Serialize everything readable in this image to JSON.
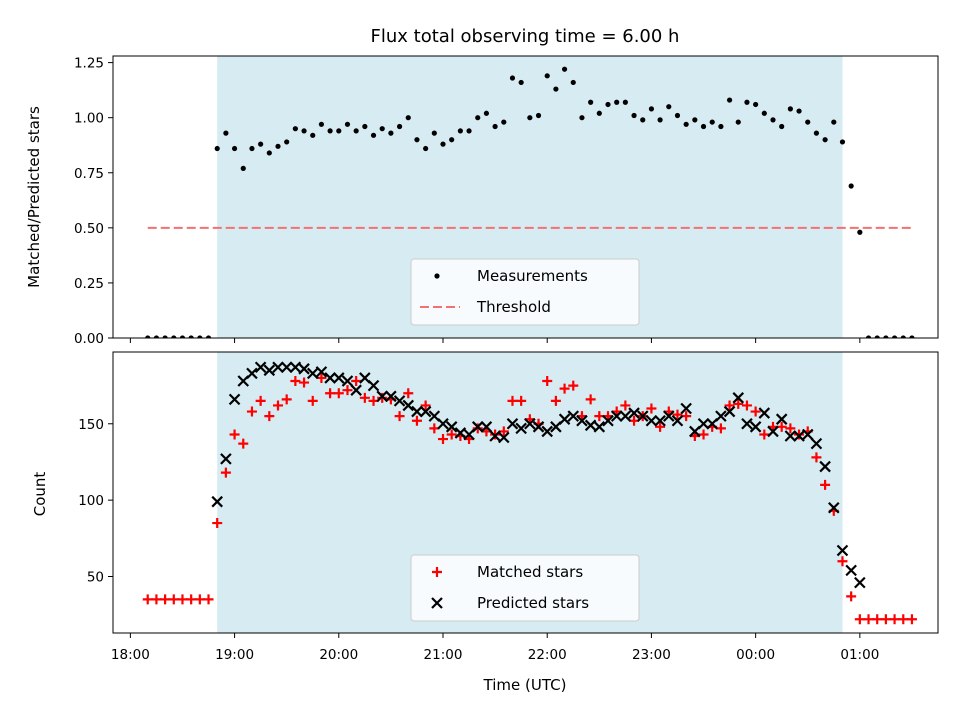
{
  "title": "Flux total observing time = 6.00 h",
  "chart_data": [
    {
      "type": "scatter",
      "ylabel": "Matched/Predicted stars",
      "ylim": [
        0,
        1.28
      ],
      "yticks": [
        "0.00",
        "0.25",
        "0.50",
        "0.75",
        "1.00",
        "1.25"
      ],
      "xlim": [
        "17:50",
        "01:45"
      ],
      "shaded_interval": [
        "18:50",
        "00:50"
      ],
      "legend_position": "lower-center",
      "series": [
        {
          "name": "Measurements",
          "marker": "dot",
          "color": "#000000",
          "points": [
            [
              "18:10",
              0
            ],
            [
              "18:15",
              0
            ],
            [
              "18:20",
              0
            ],
            [
              "18:25",
              0
            ],
            [
              "18:30",
              0
            ],
            [
              "18:35",
              0
            ],
            [
              "18:40",
              0
            ],
            [
              "18:45",
              0
            ],
            [
              "18:50",
              0.86
            ],
            [
              "18:55",
              0.93
            ],
            [
              "19:00",
              0.86
            ],
            [
              "19:05",
              0.77
            ],
            [
              "19:10",
              0.86
            ],
            [
              "19:15",
              0.88
            ],
            [
              "19:20",
              0.84
            ],
            [
              "19:25",
              0.87
            ],
            [
              "19:30",
              0.89
            ],
            [
              "19:35",
              0.95
            ],
            [
              "19:40",
              0.94
            ],
            [
              "19:45",
              0.92
            ],
            [
              "19:50",
              0.97
            ],
            [
              "19:55",
              0.94
            ],
            [
              "20:00",
              0.94
            ],
            [
              "20:05",
              0.97
            ],
            [
              "20:10",
              0.94
            ],
            [
              "20:15",
              0.96
            ],
            [
              "20:20",
              0.92
            ],
            [
              "20:25",
              0.95
            ],
            [
              "20:30",
              0.93
            ],
            [
              "20:35",
              0.96
            ],
            [
              "20:40",
              1.0
            ],
            [
              "20:45",
              0.9
            ],
            [
              "20:50",
              0.86
            ],
            [
              "20:55",
              0.93
            ],
            [
              "21:00",
              0.88
            ],
            [
              "21:05",
              0.9
            ],
            [
              "21:10",
              0.94
            ],
            [
              "21:15",
              0.94
            ],
            [
              "21:20",
              1.0
            ],
            [
              "21:25",
              1.02
            ],
            [
              "21:30",
              0.96
            ],
            [
              "21:35",
              0.98
            ],
            [
              "21:40",
              1.18
            ],
            [
              "21:45",
              1.16
            ],
            [
              "21:50",
              1.0
            ],
            [
              "21:55",
              1.01
            ],
            [
              "22:00",
              1.19
            ],
            [
              "22:05",
              1.13
            ],
            [
              "22:10",
              1.22
            ],
            [
              "22:15",
              1.16
            ],
            [
              "22:20",
              1.0
            ],
            [
              "22:25",
              1.07
            ],
            [
              "22:30",
              1.02
            ],
            [
              "22:35",
              1.06
            ],
            [
              "22:40",
              1.07
            ],
            [
              "22:45",
              1.07
            ],
            [
              "22:50",
              1.01
            ],
            [
              "22:55",
              0.99
            ],
            [
              "23:00",
              1.04
            ],
            [
              "23:05",
              0.99
            ],
            [
              "23:10",
              1.05
            ],
            [
              "23:15",
              1.01
            ],
            [
              "23:20",
              0.97
            ],
            [
              "23:25",
              0.99
            ],
            [
              "23:30",
              0.96
            ],
            [
              "23:35",
              0.98
            ],
            [
              "23:40",
              0.96
            ],
            [
              "23:45",
              1.08
            ],
            [
              "23:50",
              0.98
            ],
            [
              "23:55",
              1.07
            ],
            [
              "00:00",
              1.06
            ],
            [
              "00:05",
              1.02
            ],
            [
              "00:10",
              0.99
            ],
            [
              "00:15",
              0.96
            ],
            [
              "00:20",
              1.04
            ],
            [
              "00:25",
              1.03
            ],
            [
              "00:30",
              0.98
            ],
            [
              "00:35",
              0.93
            ],
            [
              "00:40",
              0.9
            ],
            [
              "00:45",
              0.98
            ],
            [
              "00:50",
              0.89
            ],
            [
              "00:55",
              0.69
            ],
            [
              "01:00",
              0.48
            ],
            [
              "01:05",
              0
            ],
            [
              "01:10",
              0
            ],
            [
              "01:15",
              0
            ],
            [
              "01:20",
              0
            ],
            [
              "01:25",
              0
            ],
            [
              "01:30",
              0
            ]
          ]
        },
        {
          "name": "Threshold",
          "line_style": "dashed",
          "color": "#f47171",
          "y": 0.5,
          "x_range": [
            "18:10",
            "01:30"
          ]
        }
      ]
    },
    {
      "type": "scatter",
      "xlabel": "Time (UTC)",
      "ylabel": "Count",
      "ylim": [
        13,
        197
      ],
      "yticks": [
        "50",
        "100",
        "150"
      ],
      "xlim": [
        "17:50",
        "01:45"
      ],
      "xticks": [
        "18:00",
        "19:00",
        "20:00",
        "21:00",
        "22:00",
        "23:00",
        "00:00",
        "01:00"
      ],
      "shaded_interval": [
        "18:50",
        "00:50"
      ],
      "legend_position": "lower-center",
      "series": [
        {
          "name": "Matched stars",
          "marker": "plus",
          "color": "#ff0000",
          "points": [
            [
              "18:10",
              35
            ],
            [
              "18:15",
              35
            ],
            [
              "18:20",
              35
            ],
            [
              "18:25",
              35
            ],
            [
              "18:30",
              35
            ],
            [
              "18:35",
              35
            ],
            [
              "18:40",
              35
            ],
            [
              "18:45",
              35
            ],
            [
              "18:50",
              85
            ],
            [
              "18:55",
              118
            ],
            [
              "19:00",
              143
            ],
            [
              "19:05",
              137
            ],
            [
              "19:10",
              158
            ],
            [
              "19:15",
              165
            ],
            [
              "19:20",
              155
            ],
            [
              "19:25",
              162
            ],
            [
              "19:30",
              166
            ],
            [
              "19:35",
              178
            ],
            [
              "19:40",
              177
            ],
            [
              "19:45",
              165
            ],
            [
              "19:50",
              180
            ],
            [
              "19:55",
              170
            ],
            [
              "20:00",
              170
            ],
            [
              "20:05",
              172
            ],
            [
              "20:10",
              178
            ],
            [
              "20:15",
              167
            ],
            [
              "20:20",
              165
            ],
            [
              "20:25",
              167
            ],
            [
              "20:30",
              166
            ],
            [
              "20:35",
              155
            ],
            [
              "20:40",
              170
            ],
            [
              "20:45",
              152
            ],
            [
              "20:50",
              162
            ],
            [
              "20:55",
              147
            ],
            [
              "21:00",
              140
            ],
            [
              "21:05",
              143
            ],
            [
              "21:10",
              142
            ],
            [
              "21:15",
              140
            ],
            [
              "21:20",
              147
            ],
            [
              "21:25",
              145
            ],
            [
              "21:30",
              143
            ],
            [
              "21:35",
              145
            ],
            [
              "21:40",
              165
            ],
            [
              "21:45",
              165
            ],
            [
              "21:50",
              153
            ],
            [
              "21:55",
              150
            ],
            [
              "22:00",
              178
            ],
            [
              "22:05",
              165
            ],
            [
              "22:10",
              173
            ],
            [
              "22:15",
              175
            ],
            [
              "22:20",
              155
            ],
            [
              "22:25",
              166
            ],
            [
              "22:30",
              155
            ],
            [
              "22:35",
              155
            ],
            [
              "22:40",
              158
            ],
            [
              "22:45",
              162
            ],
            [
              "22:50",
              152
            ],
            [
              "22:55",
              155
            ],
            [
              "23:00",
              160
            ],
            [
              "23:05",
              148
            ],
            [
              "23:10",
              158
            ],
            [
              "23:15",
              156
            ],
            [
              "23:20",
              155
            ],
            [
              "23:25",
              142
            ],
            [
              "23:30",
              143
            ],
            [
              "23:35",
              148
            ],
            [
              "23:40",
              147
            ],
            [
              "23:45",
              162
            ],
            [
              "23:50",
              163
            ],
            [
              "23:55",
              162
            ],
            [
              "00:00",
              158
            ],
            [
              "00:05",
              143
            ],
            [
              "00:10",
              148
            ],
            [
              "00:15",
              148
            ],
            [
              "00:20",
              147
            ],
            [
              "00:25",
              143
            ],
            [
              "00:30",
              145
            ],
            [
              "00:35",
              128
            ],
            [
              "00:40",
              110
            ],
            [
              "00:45",
              93
            ],
            [
              "00:50",
              60
            ],
            [
              "00:55",
              37
            ],
            [
              "01:00",
              22
            ],
            [
              "01:05",
              22
            ],
            [
              "01:10",
              22
            ],
            [
              "01:15",
              22
            ],
            [
              "01:20",
              22
            ],
            [
              "01:25",
              22
            ],
            [
              "01:30",
              22
            ]
          ]
        },
        {
          "name": "Predicted stars",
          "marker": "x",
          "color": "#000000",
          "points": [
            [
              "18:50",
              99
            ],
            [
              "18:55",
              127
            ],
            [
              "19:00",
              166
            ],
            [
              "19:05",
              178
            ],
            [
              "19:10",
              183
            ],
            [
              "19:15",
              187
            ],
            [
              "19:20",
              185
            ],
            [
              "19:25",
              187
            ],
            [
              "19:30",
              187
            ],
            [
              "19:35",
              187
            ],
            [
              "19:40",
              186
            ],
            [
              "19:45",
              183
            ],
            [
              "19:50",
              184
            ],
            [
              "19:55",
              180
            ],
            [
              "20:00",
              180
            ],
            [
              "20:05",
              178
            ],
            [
              "20:10",
              172
            ],
            [
              "20:15",
              180
            ],
            [
              "20:20",
              175
            ],
            [
              "20:25",
              168
            ],
            [
              "20:30",
              168
            ],
            [
              "20:35",
              165
            ],
            [
              "20:40",
              162
            ],
            [
              "20:45",
              158
            ],
            [
              "20:50",
              158
            ],
            [
              "20:55",
              155
            ],
            [
              "21:00",
              150
            ],
            [
              "21:05",
              148
            ],
            [
              "21:10",
              144
            ],
            [
              "21:15",
              143
            ],
            [
              "21:20",
              148
            ],
            [
              "21:25",
              148
            ],
            [
              "21:30",
              142
            ],
            [
              "21:35",
              141
            ],
            [
              "21:40",
              150
            ],
            [
              "21:45",
              147
            ],
            [
              "21:50",
              150
            ],
            [
              "21:55",
              148
            ],
            [
              "22:00",
              145
            ],
            [
              "22:05",
              148
            ],
            [
              "22:10",
              153
            ],
            [
              "22:15",
              155
            ],
            [
              "22:20",
              152
            ],
            [
              "22:25",
              149
            ],
            [
              "22:30",
              148
            ],
            [
              "22:35",
              152
            ],
            [
              "22:40",
              155
            ],
            [
              "22:45",
              155
            ],
            [
              "22:50",
              157
            ],
            [
              "22:55",
              155
            ],
            [
              "23:00",
              152
            ],
            [
              "23:05",
              152
            ],
            [
              "23:10",
              155
            ],
            [
              "23:15",
              152
            ],
            [
              "23:20",
              160
            ],
            [
              "23:25",
              145
            ],
            [
              "23:30",
              150
            ],
            [
              "23:35",
              150
            ],
            [
              "23:40",
              155
            ],
            [
              "23:45",
              158
            ],
            [
              "23:50",
              167
            ],
            [
              "23:55",
              150
            ],
            [
              "00:00",
              148
            ],
            [
              "00:05",
              157
            ],
            [
              "00:10",
              145
            ],
            [
              "00:15",
              153
            ],
            [
              "00:20",
              142
            ],
            [
              "00:25",
              142
            ],
            [
              "00:30",
              143
            ],
            [
              "00:35",
              137
            ],
            [
              "00:40",
              122
            ],
            [
              "00:45",
              95
            ],
            [
              "00:50",
              67
            ],
            [
              "00:55",
              54
            ],
            [
              "01:00",
              46
            ]
          ]
        }
      ]
    }
  ]
}
